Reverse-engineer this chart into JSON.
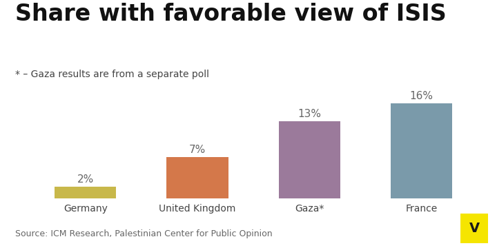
{
  "title": "Share with favorable view of ISIS",
  "subtitle": "* – Gaza results are from a separate poll",
  "categories": [
    "Germany",
    "United Kingdom",
    "Gaza*",
    "France"
  ],
  "values": [
    2,
    7,
    13,
    16
  ],
  "bar_colors": [
    "#c8b84a",
    "#d4784a",
    "#9b7a9b",
    "#7a9aaa"
  ],
  "value_labels": [
    "2%",
    "7%",
    "13%",
    "16%"
  ],
  "source": "Source: ICM Research, Palestinian Center for Public Opinion",
  "background_color": "#ffffff",
  "ylim": [
    0,
    20
  ],
  "vox_logo_color": "#f5e500",
  "title_fontsize": 24,
  "subtitle_fontsize": 10,
  "label_fontsize": 11,
  "tick_fontsize": 10,
  "source_fontsize": 9
}
